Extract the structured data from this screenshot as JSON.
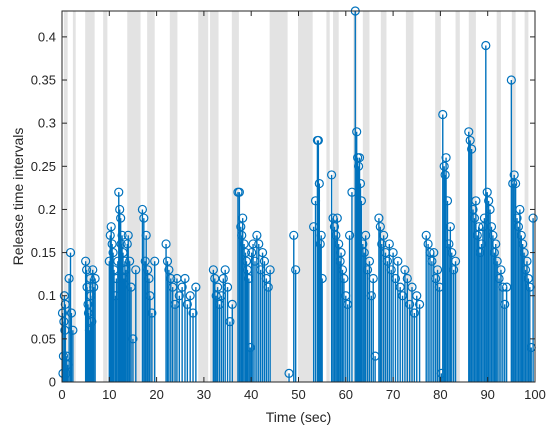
{
  "chart_data": {
    "type": "stem",
    "xlabel": "Time (sec)",
    "ylabel": "Release time intervals",
    "xlim": [
      0,
      100
    ],
    "ylim": [
      0,
      0.43
    ],
    "xticks": [
      0,
      10,
      20,
      30,
      40,
      50,
      60,
      70,
      80,
      90,
      100
    ],
    "yticks": [
      0,
      0.05,
      0.1,
      0.15,
      0.2,
      0.25,
      0.3,
      0.35,
      0.4
    ],
    "ytick_labels": [
      "0",
      "0.05",
      "0.1",
      "0.15",
      "0.2",
      "0.25",
      "0.3",
      "0.35",
      "0.4"
    ],
    "stem_color": "#0072BD",
    "shade_color": "#E3E3E3",
    "grid": false,
    "shaded_intervals": [
      [
        0.4,
        1.2
      ],
      [
        2.3,
        2.9
      ],
      [
        4.9,
        6.9
      ],
      [
        8.7,
        9.6
      ],
      [
        13.8,
        16.6
      ],
      [
        18.0,
        19.6
      ],
      [
        22.8,
        24.4
      ],
      [
        28.8,
        30.9
      ],
      [
        31.3,
        33.1
      ],
      [
        35.9,
        37.4
      ],
      [
        43.9,
        47.7
      ],
      [
        49.9,
        53.0
      ],
      [
        55.9,
        56.6
      ],
      [
        57.3,
        58.5
      ],
      [
        61.6,
        62.4
      ],
      [
        63.6,
        65.0
      ],
      [
        67.4,
        68.6
      ],
      [
        72.7,
        74.3
      ],
      [
        78.9,
        80.1
      ],
      [
        83.2,
        84.1
      ],
      [
        86.0,
        87.5
      ],
      [
        91.9,
        92.8
      ],
      [
        95.1,
        95.9
      ],
      [
        97.8,
        98.6
      ]
    ],
    "series": [
      {
        "x": [
          0.1,
          0.2,
          0.3,
          0.4,
          0.5,
          0.6,
          0.7,
          0.9,
          1.0,
          1.2,
          1.5,
          1.8,
          2.0,
          2.3,
          5.0,
          5.2,
          5.3,
          5.5,
          5.6,
          5.8,
          6.0,
          6.1,
          6.3,
          6.5,
          6.7,
          7.0,
          10.0,
          10.2,
          10.4,
          10.6,
          10.8,
          11.0,
          11.3,
          11.5,
          11.8,
          12.0,
          12.2,
          12.4,
          12.5,
          12.7,
          12.9,
          13.1,
          13.3,
          13.5,
          13.8,
          14.0,
          14.3,
          14.6,
          15.0,
          15.6,
          17.0,
          17.3,
          17.6,
          17.8,
          18.1,
          18.4,
          18.6,
          19.0,
          19.6,
          22.0,
          22.3,
          22.6,
          23.0,
          23.4,
          23.9,
          24.3,
          24.8,
          25.4,
          26.0,
          26.5,
          27.1,
          27.7,
          28.3,
          32.0,
          32.3,
          32.6,
          32.9,
          33.3,
          33.7,
          34.1,
          34.5,
          35.0,
          35.5,
          36.0,
          37.2,
          37.5,
          37.8,
          38.0,
          38.2,
          38.5,
          38.8,
          39.0,
          39.2,
          39.5,
          39.8,
          40.1,
          40.4,
          40.8,
          41.2,
          41.6,
          42.0,
          42.4,
          42.8,
          43.2,
          43.6,
          44.0,
          48.0,
          49.0,
          49.4,
          53.2,
          53.6,
          54.0,
          54.2,
          54.4,
          54.6,
          54.8,
          55.0,
          57.0,
          57.3,
          57.6,
          57.9,
          58.2,
          58.5,
          58.8,
          59.0,
          59.3,
          59.6,
          60.0,
          60.4,
          60.8,
          61.3,
          62.0,
          62.3,
          62.5,
          62.7,
          62.9,
          63.1,
          63.3,
          63.6,
          63.9,
          64.2,
          64.6,
          65.0,
          65.4,
          65.8,
          66.2,
          67.0,
          67.3,
          67.6,
          68.0,
          68.4,
          68.8,
          69.2,
          69.6,
          70.0,
          70.5,
          71.0,
          71.5,
          72.0,
          72.5,
          73.0,
          73.5,
          74.0,
          74.5,
          75.0,
          75.6,
          77.0,
          77.4,
          77.8,
          78.2,
          78.6,
          79.0,
          79.4,
          79.8,
          80.2,
          80.5,
          80.8,
          81.0,
          81.2,
          81.5,
          81.8,
          82.1,
          82.4,
          82.8,
          83.2,
          86.0,
          86.3,
          86.6,
          86.9,
          87.2,
          87.5,
          87.8,
          88.1,
          88.4,
          88.7,
          89.0,
          89.3,
          89.6,
          89.9,
          90.2,
          90.5,
          90.8,
          91.1,
          91.4,
          91.7,
          92.0,
          92.4,
          92.8,
          93.2,
          93.6,
          94.0,
          95.0,
          95.3,
          95.6,
          95.9,
          96.2,
          96.5,
          96.8,
          97.1,
          97.4,
          97.7,
          98.0,
          98.3,
          98.6,
          98.9,
          99.2,
          99.6
        ],
        "y": [
          0.08,
          0.01,
          0.03,
          0.07,
          0.1,
          0.06,
          0.09,
          0.01,
          0.03,
          0.02,
          0.12,
          0.15,
          0.08,
          0.06,
          0.14,
          0.13,
          0.11,
          0.09,
          0.08,
          0.06,
          0.12,
          0.1,
          0.07,
          0.13,
          0.11,
          0.12,
          0.14,
          0.17,
          0.18,
          0.16,
          0.15,
          0.13,
          0.1,
          0.12,
          0.14,
          0.22,
          0.2,
          0.19,
          0.16,
          0.17,
          0.15,
          0.12,
          0.14,
          0.13,
          0.16,
          0.17,
          0.14,
          0.11,
          0.05,
          0.13,
          0.2,
          0.19,
          0.14,
          0.17,
          0.13,
          0.12,
          0.1,
          0.08,
          0.14,
          0.16,
          0.14,
          0.13,
          0.12,
          0.11,
          0.09,
          0.12,
          0.1,
          0.11,
          0.12,
          0.09,
          0.1,
          0.08,
          0.11,
          0.13,
          0.12,
          0.1,
          0.11,
          0.09,
          0.1,
          0.12,
          0.13,
          0.11,
          0.07,
          0.09,
          0.22,
          0.22,
          0.18,
          0.17,
          0.19,
          0.16,
          0.15,
          0.14,
          0.13,
          0.12,
          0.04,
          0.15,
          0.16,
          0.14,
          0.17,
          0.16,
          0.13,
          0.15,
          0.14,
          0.12,
          0.11,
          0.13,
          0.01,
          0.17,
          0.13,
          0.18,
          0.21,
          0.28,
          0.28,
          0.23,
          0.16,
          0.17,
          0.12,
          0.24,
          0.19,
          0.18,
          0.17,
          0.19,
          0.16,
          0.14,
          0.15,
          0.13,
          0.12,
          0.1,
          0.09,
          0.17,
          0.22,
          0.43,
          0.29,
          0.26,
          0.25,
          0.26,
          0.23,
          0.21,
          0.16,
          0.15,
          0.17,
          0.13,
          0.14,
          0.1,
          0.12,
          0.03,
          0.19,
          0.18,
          0.16,
          0.17,
          0.15,
          0.14,
          0.16,
          0.13,
          0.15,
          0.12,
          0.14,
          0.11,
          0.1,
          0.13,
          0.12,
          0.09,
          0.11,
          0.08,
          0.1,
          0.09,
          0.17,
          0.16,
          0.15,
          0.14,
          0.15,
          0.12,
          0.13,
          0.11,
          0.01,
          0.31,
          0.25,
          0.24,
          0.26,
          0.21,
          0.16,
          0.18,
          0.15,
          0.13,
          0.14,
          0.29,
          0.28,
          0.27,
          0.2,
          0.19,
          0.21,
          0.17,
          0.18,
          0.15,
          0.16,
          0.18,
          0.19,
          0.39,
          0.22,
          0.21,
          0.2,
          0.18,
          0.17,
          0.15,
          0.16,
          0.14,
          0.12,
          0.13,
          0.11,
          0.09,
          0.11,
          0.35,
          0.23,
          0.24,
          0.23,
          0.19,
          0.18,
          0.2,
          0.17,
          0.16,
          0.15,
          0.13,
          0.14,
          0.12,
          0.11,
          0.04,
          0.19
        ]
      }
    ]
  }
}
